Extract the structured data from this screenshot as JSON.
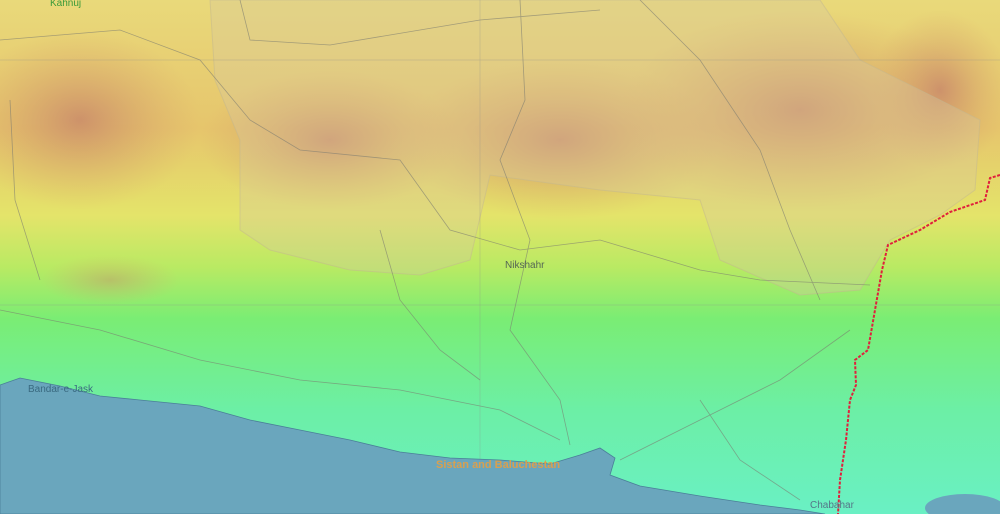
{
  "places": [
    "Kahnuj",
    "Bandar-e-Jask",
    "Nikshahr",
    "Chabahar"
  ],
  "region": "Sistan and Baluchestan"
}
